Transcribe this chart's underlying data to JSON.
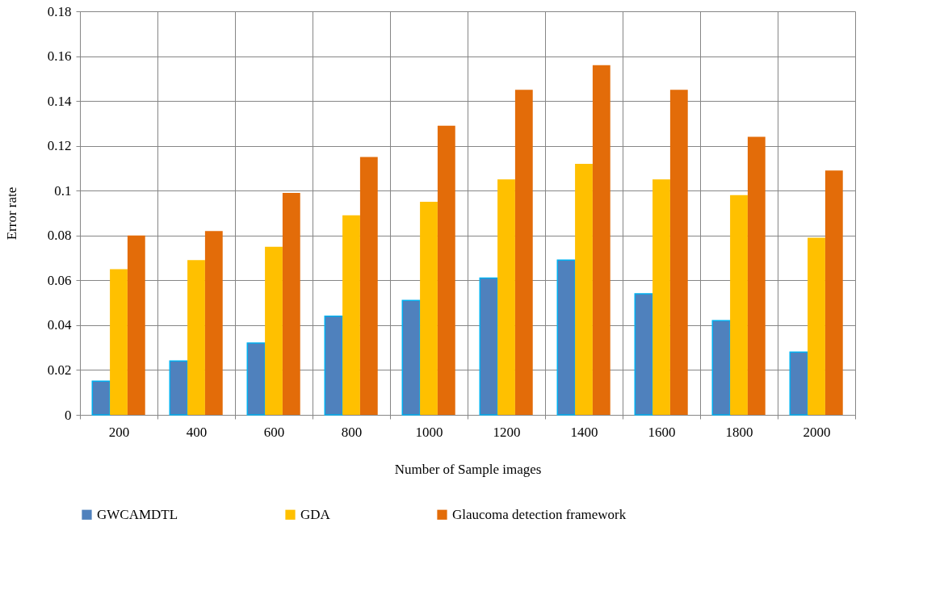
{
  "chart_data": {
    "type": "bar",
    "xlabel": "Number of Sample images",
    "ylabel": "Error rate",
    "categories": [
      "200",
      "400",
      "600",
      "800",
      "1000",
      "1200",
      "1400",
      "1600",
      "1800",
      "2000"
    ],
    "series": [
      {
        "name": "GWCAMDTL",
        "color": "#4f81bd",
        "values": [
          0.015,
          0.024,
          0.032,
          0.044,
          0.051,
          0.061,
          0.069,
          0.054,
          0.042,
          0.028
        ]
      },
      {
        "name": "GDA",
        "color": "#ffc000",
        "values": [
          0.065,
          0.069,
          0.075,
          0.089,
          0.095,
          0.105,
          0.112,
          0.105,
          0.098,
          0.079
        ]
      },
      {
        "name": "Glaucoma detection framework",
        "color": "#e36c09",
        "values": [
          0.08,
          0.082,
          0.099,
          0.115,
          0.129,
          0.145,
          0.156,
          0.145,
          0.124,
          0.109
        ]
      }
    ],
    "ylim": [
      0,
      0.18
    ],
    "yticks": [
      0,
      0.02,
      0.04,
      0.06,
      0.08,
      0.1,
      0.12,
      0.14,
      0.16,
      0.18
    ],
    "grid": true,
    "legend": "bottom"
  }
}
